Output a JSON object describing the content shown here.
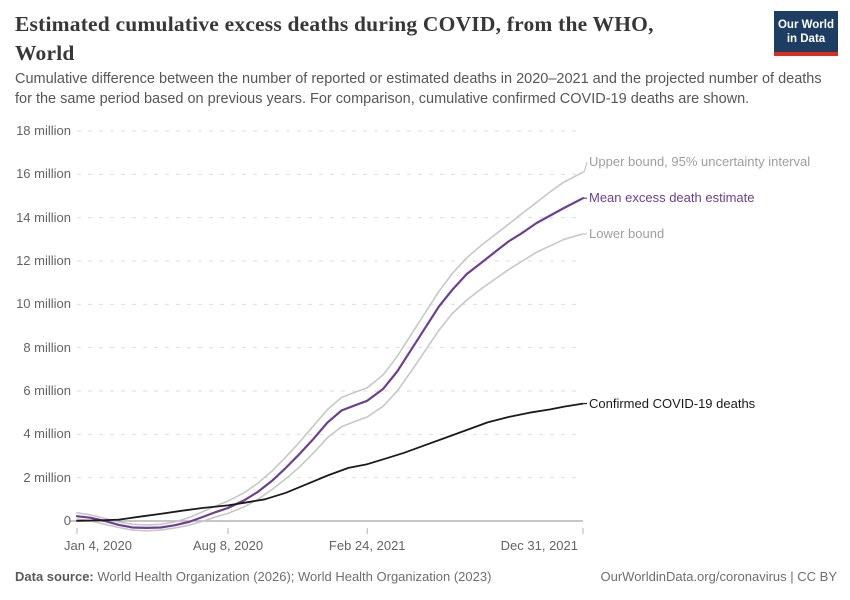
{
  "header": {
    "title": "Estimated cumulative excess deaths during COVID, from the WHO, World",
    "subtitle": "Cumulative difference between the number of reported or estimated deaths in 2020–2021 and the projected number of deaths for the same period based on previous years. For comparison, cumulative confirmed COVID-19 deaths are shown.",
    "logo": {
      "line1": "Our World",
      "line2": "in Data",
      "bg_color": "#1d3d63",
      "stripe_color": "#dc2e1c"
    }
  },
  "chart_data": {
    "type": "line",
    "title": "Estimated cumulative excess deaths during COVID, from the WHO, World",
    "xlabel": "",
    "ylabel": "",
    "x_unit": "days since Jan 4, 2020",
    "xlim_days": [
      0,
      727
    ],
    "ylim": [
      -0.55,
      18
    ],
    "grid": "horizontal-dashed",
    "grid_color": "#dedede",
    "axis_line_color": "#b3b3b3",
    "y_ticks": [
      {
        "value": 0,
        "label": "0"
      },
      {
        "value": 2,
        "label": "2 million"
      },
      {
        "value": 4,
        "label": "4 million"
      },
      {
        "value": 6,
        "label": "6 million"
      },
      {
        "value": 8,
        "label": "8 million"
      },
      {
        "value": 10,
        "label": "10 million"
      },
      {
        "value": 12,
        "label": "12 million"
      },
      {
        "value": 14,
        "label": "14 million"
      },
      {
        "value": 16,
        "label": "16 million"
      },
      {
        "value": 18,
        "label": "18 million"
      }
    ],
    "x_ticks": [
      {
        "day": 0,
        "label": "Jan 4, 2020",
        "align": "left"
      },
      {
        "day": 217,
        "label": "Aug 8, 2020",
        "align": "center"
      },
      {
        "day": 417,
        "label": "Feb 24, 2021",
        "align": "center"
      },
      {
        "day": 727,
        "label": "Dec 31, 2021",
        "align": "right"
      }
    ],
    "legend_position": "right-of-line-ends",
    "series": [
      {
        "name": "Upper bound, 95% uncertainty interval",
        "color": "#c7c7c7",
        "label_color": "#9e9e9e",
        "width": 1.6,
        "label_dy": -10,
        "unit": "million deaths",
        "points": [
          [
            0,
            0.38
          ],
          [
            20,
            0.28
          ],
          [
            40,
            0.12
          ],
          [
            60,
            -0.05
          ],
          [
            80,
            -0.15
          ],
          [
            100,
            -0.18
          ],
          [
            120,
            -0.15
          ],
          [
            140,
            -0.05
          ],
          [
            160,
            0.15
          ],
          [
            180,
            0.42
          ],
          [
            200,
            0.7
          ],
          [
            217,
            0.92
          ],
          [
            240,
            1.3
          ],
          [
            260,
            1.75
          ],
          [
            280,
            2.3
          ],
          [
            300,
            2.95
          ],
          [
            320,
            3.65
          ],
          [
            340,
            4.4
          ],
          [
            360,
            5.15
          ],
          [
            380,
            5.7
          ],
          [
            400,
            5.95
          ],
          [
            417,
            6.15
          ],
          [
            440,
            6.75
          ],
          [
            460,
            7.6
          ],
          [
            480,
            8.6
          ],
          [
            500,
            9.6
          ],
          [
            520,
            10.6
          ],
          [
            540,
            11.45
          ],
          [
            560,
            12.15
          ],
          [
            580,
            12.7
          ],
          [
            600,
            13.2
          ],
          [
            620,
            13.7
          ],
          [
            640,
            14.2
          ],
          [
            660,
            14.7
          ],
          [
            680,
            15.2
          ],
          [
            700,
            15.65
          ],
          [
            727,
            16.1
          ]
        ]
      },
      {
        "name": "Mean excess death estimate",
        "color": "#6d3e91",
        "label_color": "#6d3e91",
        "width": 2.2,
        "label_dy": 0,
        "unit": "million deaths",
        "points": [
          [
            0,
            0.22
          ],
          [
            20,
            0.15
          ],
          [
            40,
            0.0
          ],
          [
            60,
            -0.18
          ],
          [
            80,
            -0.3
          ],
          [
            100,
            -0.32
          ],
          [
            120,
            -0.3
          ],
          [
            140,
            -0.2
          ],
          [
            160,
            -0.05
          ],
          [
            180,
            0.18
          ],
          [
            200,
            0.42
          ],
          [
            217,
            0.6
          ],
          [
            240,
            0.95
          ],
          [
            260,
            1.35
          ],
          [
            280,
            1.85
          ],
          [
            300,
            2.45
          ],
          [
            320,
            3.1
          ],
          [
            340,
            3.8
          ],
          [
            360,
            4.55
          ],
          [
            380,
            5.1
          ],
          [
            400,
            5.35
          ],
          [
            417,
            5.55
          ],
          [
            440,
            6.1
          ],
          [
            460,
            6.9
          ],
          [
            480,
            7.9
          ],
          [
            500,
            8.9
          ],
          [
            520,
            9.9
          ],
          [
            540,
            10.7
          ],
          [
            560,
            11.4
          ],
          [
            580,
            11.9
          ],
          [
            600,
            12.4
          ],
          [
            620,
            12.9
          ],
          [
            640,
            13.3
          ],
          [
            660,
            13.75
          ],
          [
            680,
            14.1
          ],
          [
            700,
            14.45
          ],
          [
            727,
            14.9
          ]
        ]
      },
      {
        "name": "Lower bound",
        "color": "#c7c7c7",
        "label_color": "#9e9e9e",
        "width": 1.6,
        "label_dy": 0,
        "unit": "million deaths",
        "points": [
          [
            0,
            0.1
          ],
          [
            20,
            0.0
          ],
          [
            40,
            -0.15
          ],
          [
            60,
            -0.3
          ],
          [
            80,
            -0.42
          ],
          [
            100,
            -0.45
          ],
          [
            120,
            -0.42
          ],
          [
            140,
            -0.33
          ],
          [
            160,
            -0.2
          ],
          [
            180,
            -0.02
          ],
          [
            200,
            0.2
          ],
          [
            217,
            0.35
          ],
          [
            240,
            0.65
          ],
          [
            260,
            1.0
          ],
          [
            280,
            1.45
          ],
          [
            300,
            1.95
          ],
          [
            320,
            2.5
          ],
          [
            340,
            3.15
          ],
          [
            360,
            3.85
          ],
          [
            380,
            4.35
          ],
          [
            400,
            4.6
          ],
          [
            417,
            4.8
          ],
          [
            440,
            5.3
          ],
          [
            460,
            6.0
          ],
          [
            480,
            6.9
          ],
          [
            500,
            7.85
          ],
          [
            520,
            8.8
          ],
          [
            540,
            9.6
          ],
          [
            560,
            10.2
          ],
          [
            580,
            10.7
          ],
          [
            600,
            11.15
          ],
          [
            620,
            11.6
          ],
          [
            640,
            12.0
          ],
          [
            660,
            12.4
          ],
          [
            680,
            12.7
          ],
          [
            700,
            13.0
          ],
          [
            727,
            13.25
          ]
        ]
      },
      {
        "name": "Confirmed COVID-19 deaths",
        "color": "#1a1a1a",
        "label_color": "#1a1a1a",
        "width": 1.8,
        "label_dy": 0,
        "unit": "million deaths",
        "points": [
          [
            0,
            0.01
          ],
          [
            30,
            0.03
          ],
          [
            60,
            0.06
          ],
          [
            90,
            0.2
          ],
          [
            120,
            0.33
          ],
          [
            150,
            0.47
          ],
          [
            180,
            0.6
          ],
          [
            217,
            0.72
          ],
          [
            240,
            0.84
          ],
          [
            270,
            1.0
          ],
          [
            300,
            1.3
          ],
          [
            330,
            1.7
          ],
          [
            360,
            2.1
          ],
          [
            390,
            2.45
          ],
          [
            417,
            2.62
          ],
          [
            440,
            2.85
          ],
          [
            470,
            3.15
          ],
          [
            500,
            3.5
          ],
          [
            530,
            3.85
          ],
          [
            560,
            4.2
          ],
          [
            590,
            4.55
          ],
          [
            620,
            4.8
          ],
          [
            650,
            5.0
          ],
          [
            680,
            5.15
          ],
          [
            700,
            5.28
          ],
          [
            727,
            5.42
          ]
        ]
      }
    ]
  },
  "footer": {
    "datasource_label": "Data source:",
    "datasource_text": " World Health Organization (2026); World Health Organization (2023)",
    "link_text": "OurWorldinData.org/coronavirus | CC BY"
  }
}
